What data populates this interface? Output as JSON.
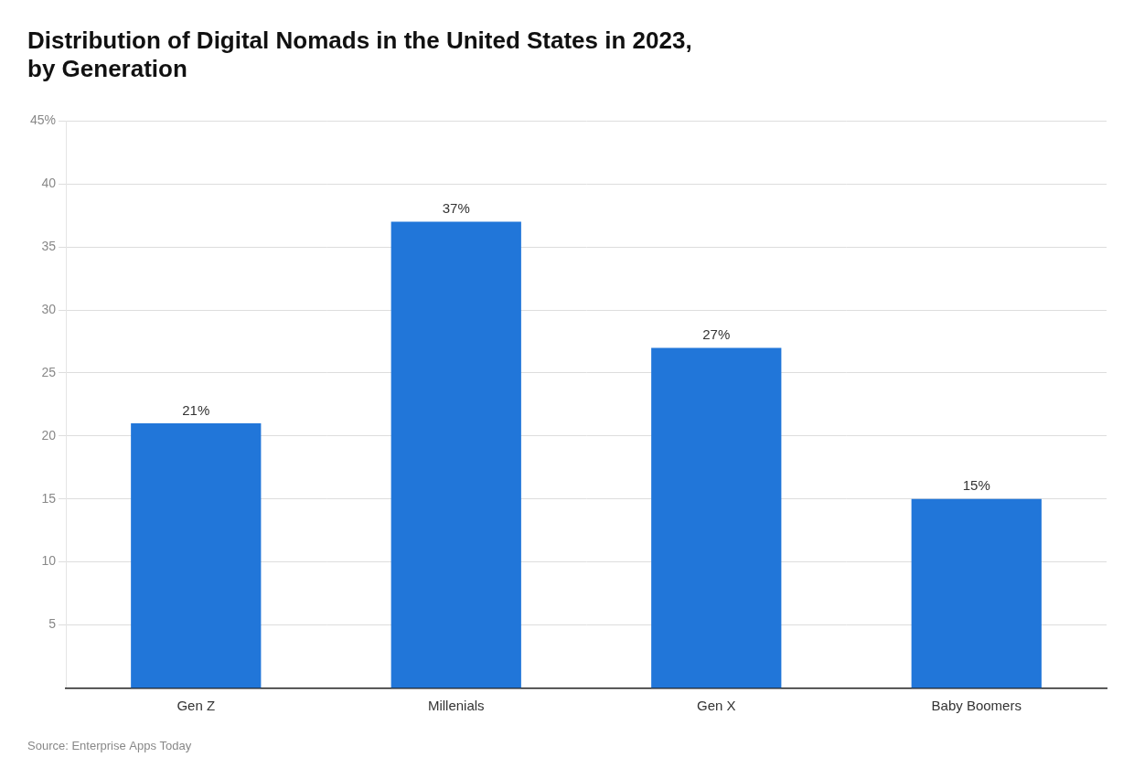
{
  "chart_data": {
    "type": "bar",
    "title": "Distribution of Digital Nomads in the United States in 2023,\nby Generation",
    "categories": [
      "Gen Z",
      "Millenials",
      "Gen X",
      "Baby Boomers"
    ],
    "values": [
      21,
      37,
      27,
      15
    ],
    "value_labels": [
      "21%",
      "37%",
      "27%",
      "15%"
    ],
    "data_labels": true,
    "color": "#2176d9",
    "ylim": [
      0,
      45
    ],
    "yticks": [
      5,
      10,
      15,
      20,
      25,
      30,
      35,
      40,
      {
        "value": 45,
        "label": "45%"
      }
    ],
    "grid": true,
    "annotations": [
      "Source: Enterprise Apps Today"
    ]
  }
}
